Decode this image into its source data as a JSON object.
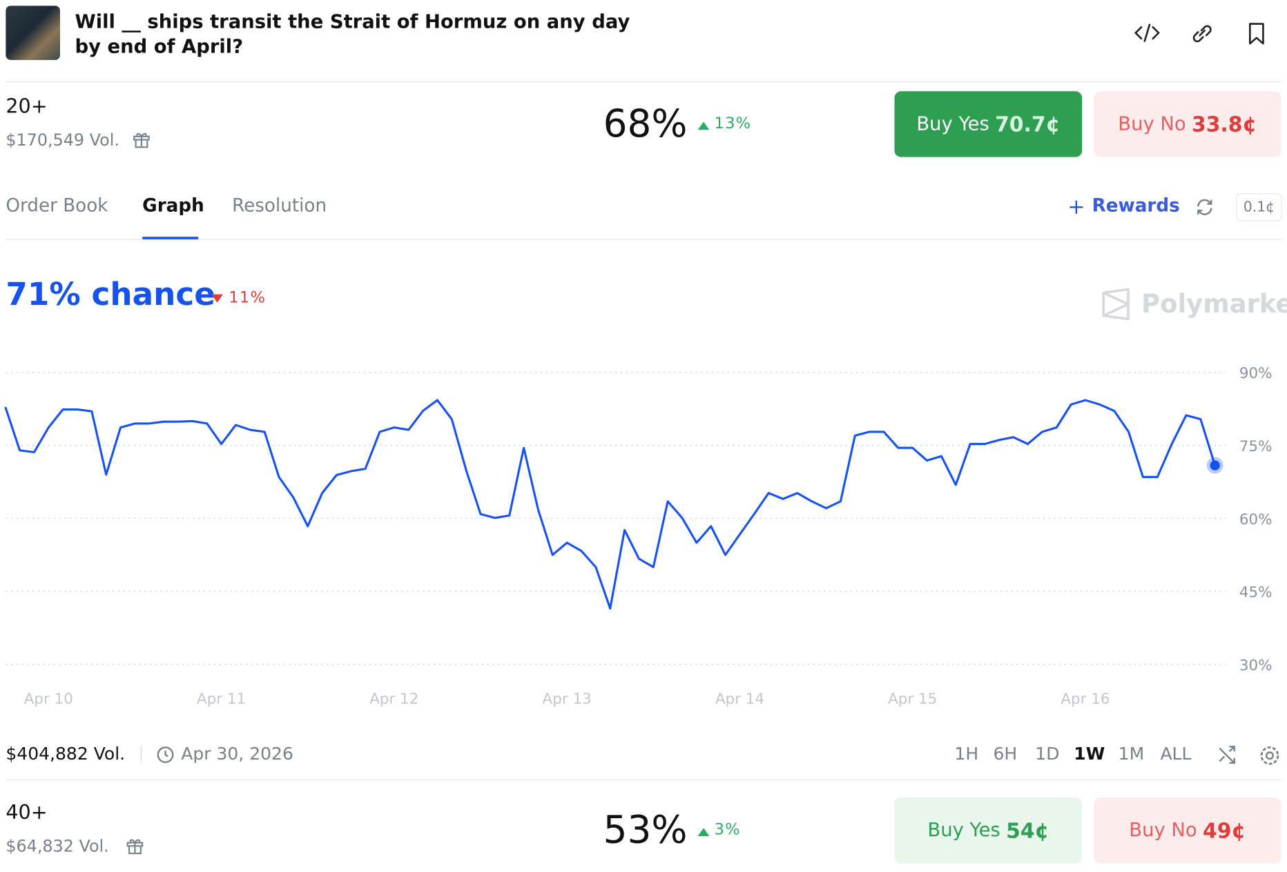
{
  "header": {
    "title": "Will __ ships transit the Strait of Hormuz on any day by end of April?"
  },
  "markets": [
    {
      "label": "20+",
      "volume": "$170,549 Vol.",
      "probability": "68%",
      "change": "13%",
      "buy_yes": "Buy Yes",
      "yes_price": "70.7¢",
      "buy_no": "Buy No",
      "no_price": "33.8¢"
    },
    {
      "label": "40+",
      "volume": "$64,832 Vol.",
      "probability": "53%",
      "change": "3%",
      "buy_yes": "Buy Yes",
      "yes_price": "54¢",
      "buy_no": "Buy No",
      "no_price": "49¢"
    }
  ],
  "tabs": [
    "Order Book",
    "Graph",
    "Resolution"
  ],
  "rewards": "Rewards",
  "tick_size": "0.1¢",
  "chance": {
    "value": "71% chance",
    "change": "11%"
  },
  "brand": "Polymarket",
  "chart_data": {
    "type": "line",
    "color": "#1652f0",
    "values": [
      82.9,
      74,
      73.6,
      78.7,
      82.4,
      82.4,
      82,
      69,
      78.7,
      79.5,
      79.5,
      79.9,
      79.9,
      80,
      79.5,
      75.3,
      79.2,
      78.2,
      77.8,
      68.5,
      64.3,
      58.4,
      65.2,
      68.9,
      69.7,
      70.2,
      77.8,
      78.7,
      78.2,
      82.1,
      84.3,
      80.4,
      69.9,
      60.9,
      60.1,
      60.6,
      74.5,
      61.8,
      52.5,
      55,
      53.3,
      50,
      41.5,
      57.6,
      51.7,
      50,
      63.5,
      60.1,
      55,
      58.4,
      52.5,
      56.7,
      60.9,
      65.2,
      64,
      65.2,
      63.5,
      62.1,
      63.5,
      77,
      77.8,
      77.8,
      74.5,
      74.5,
      71.9,
      72.8,
      66.9,
      75.3,
      75.3,
      76.1,
      76.7,
      75.3,
      77.8,
      78.7,
      83.4,
      84.3,
      83.4,
      82.1,
      77.8,
      68.5,
      68.5,
      75.3,
      81.2,
      80.4,
      70.9
    ],
    "xlim": [
      0,
      84
    ],
    "xticks": [
      {
        "value": 3,
        "label": "Apr 10"
      },
      {
        "value": 15,
        "label": "Apr 11"
      },
      {
        "value": 27,
        "label": "Apr 12"
      },
      {
        "value": 39,
        "label": "Apr 13"
      },
      {
        "value": 51,
        "label": "Apr 14"
      },
      {
        "value": 63,
        "label": "Apr 15"
      },
      {
        "value": 75,
        "label": "Apr 16"
      }
    ],
    "ylim": [
      30,
      90
    ],
    "yticks": [
      {
        "value": 30,
        "label": "30%"
      },
      {
        "value": 45,
        "label": "45%"
      },
      {
        "value": 60,
        "label": "60%"
      },
      {
        "value": 75,
        "label": "75%"
      },
      {
        "value": 90,
        "label": "90%"
      }
    ],
    "grid": true
  },
  "footer": {
    "volume": "$404,882 Vol.",
    "end_date": "Apr 30, 2026",
    "ranges": [
      "1H",
      "6H",
      "1D",
      "1W",
      "1M",
      "ALL"
    ],
    "active_range": "1W"
  }
}
